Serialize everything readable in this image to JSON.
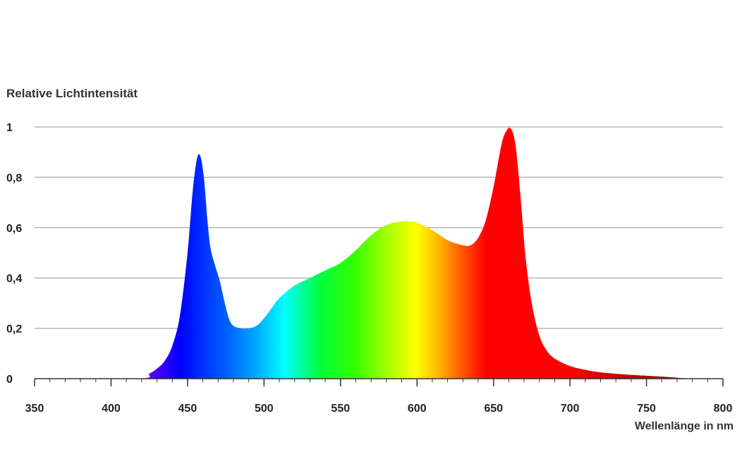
{
  "chart_data": {
    "type": "area",
    "ylabel": "Relative Lichtintensität",
    "xlabel": "Wellenlänge in nm",
    "xlim": [
      350,
      800
    ],
    "ylim": [
      0,
      1
    ],
    "x_ticks": [
      350,
      400,
      450,
      500,
      550,
      600,
      650,
      700,
      750,
      800
    ],
    "x_tick_labels": [
      "350",
      "400",
      "450",
      "500",
      "550",
      "600",
      "650",
      "700",
      "750",
      "800"
    ],
    "y_ticks": [
      0,
      0.2,
      0.4,
      0.6,
      0.8,
      1
    ],
    "y_tick_labels": [
      "0",
      "0,2",
      "0,4",
      "0,6",
      "0,8",
      "1"
    ],
    "grid": "horizontal",
    "fill": "spectral-gradient",
    "series": [
      {
        "x": [
          350,
          418,
          425,
          430,
          435,
          440,
          445,
          450,
          453,
          455,
          457,
          459,
          461,
          463,
          465,
          468,
          471,
          474,
          477,
          480,
          485,
          490,
          495,
          500,
          505,
          510,
          520,
          530,
          540,
          550,
          560,
          570,
          580,
          590,
          595,
          600,
          610,
          620,
          630,
          635,
          640,
          645,
          650,
          653,
          656,
          659,
          661,
          663,
          665,
          668,
          671,
          675,
          680,
          685,
          690,
          700,
          710,
          720,
          740,
          760,
          780,
          800
        ],
        "y": [
          0,
          0,
          0.02,
          0.04,
          0.07,
          0.13,
          0.25,
          0.5,
          0.72,
          0.83,
          0.89,
          0.87,
          0.78,
          0.63,
          0.52,
          0.45,
          0.39,
          0.31,
          0.24,
          0.21,
          0.2,
          0.2,
          0.21,
          0.24,
          0.28,
          0.32,
          0.37,
          0.4,
          0.43,
          0.46,
          0.51,
          0.57,
          0.61,
          0.625,
          0.625,
          0.62,
          0.59,
          0.55,
          0.53,
          0.53,
          0.56,
          0.63,
          0.76,
          0.86,
          0.95,
          0.99,
          0.995,
          0.97,
          0.9,
          0.7,
          0.48,
          0.3,
          0.17,
          0.11,
          0.08,
          0.05,
          0.035,
          0.025,
          0.015,
          0.008,
          0,
          0
        ]
      }
    ]
  }
}
